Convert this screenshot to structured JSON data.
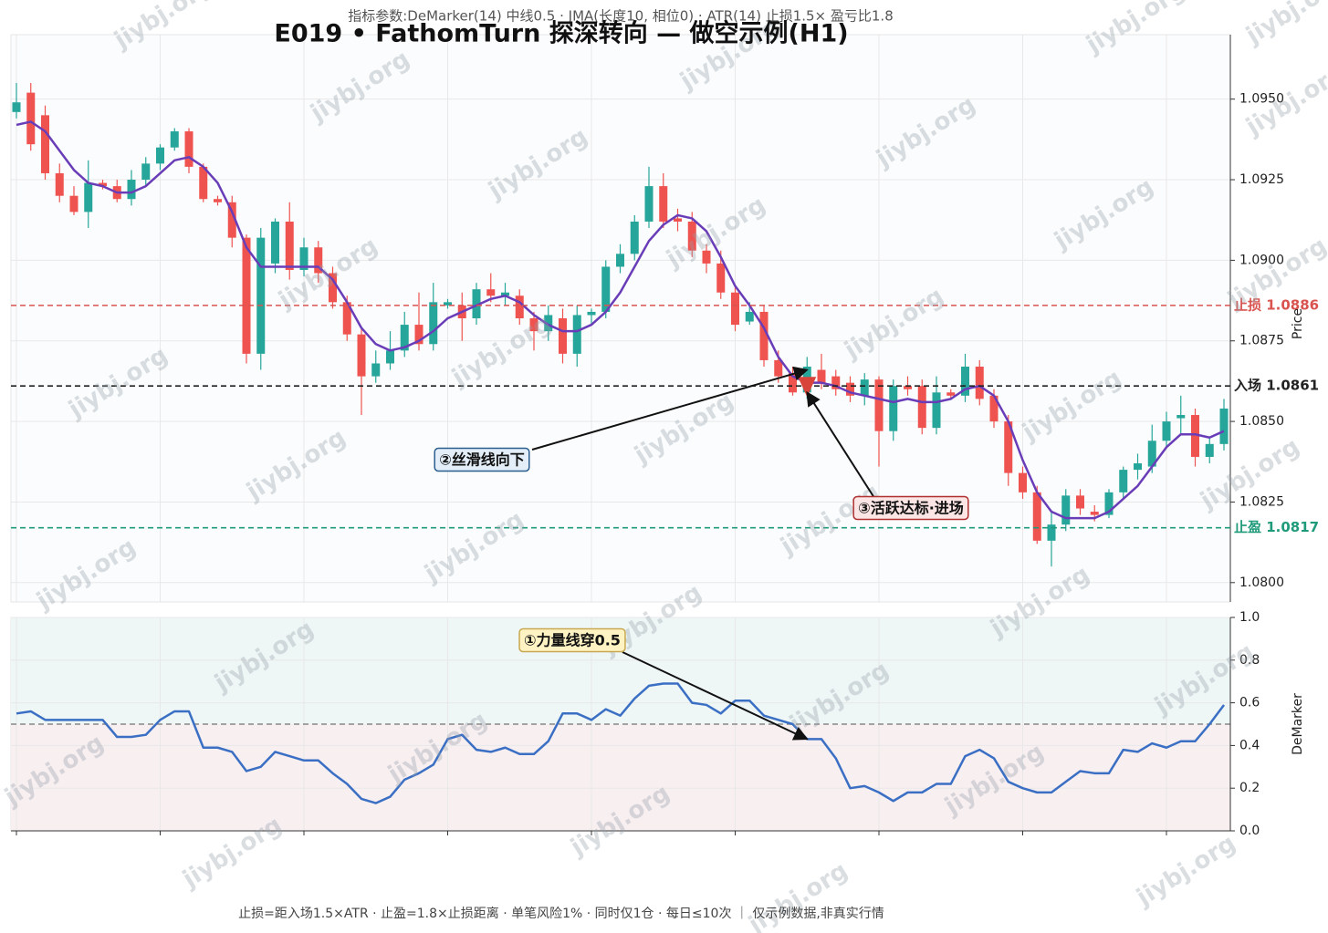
{
  "title": "E019 • FathomTurn 探深转向 — 做空示例(H1)",
  "subtitle": "指标参数:DeMarker(14) 中线0.5 · JMA(长度10, 相位0) · ATR(14) 止损1.5× 盈亏比1.8",
  "footnote": "止损=距入场1.5×ATR · 止盈=1.8×止损距离 · 单笔风险1% · 同时仅1仓 · 每日≤10次 ｜ 仅示例数据,非真实行情",
  "watermark": "jiybj.org",
  "chart_data": [
    {
      "type": "candlestick",
      "ylabel": "Price",
      "grid": true,
      "ylim": [
        1.0794,
        1.097
      ],
      "yticks": [
        {
          "value": 1.08,
          "label": "1.0800"
        },
        1.0825,
        {
          "value": 1.085,
          "label": "1.0850"
        },
        1.0875,
        {
          "value": 1.09,
          "label": "1.0900"
        },
        1.0925,
        {
          "value": 1.095,
          "label": "1.0950"
        }
      ],
      "xticks": [
        0,
        10,
        20,
        30,
        40,
        50,
        60,
        70,
        80
      ],
      "series": [
        {
          "up_color": "#26a69a",
          "down_color": "#ef5350",
          "open": [
            1.0946,
            1.0952,
            1.0945,
            1.0927,
            1.092,
            1.0915,
            1.0924,
            1.0923,
            1.0919,
            1.0925,
            1.093,
            1.0935,
            1.094,
            1.0929,
            1.0919,
            1.0918,
            1.0907,
            1.0871,
            1.0899,
            1.0912,
            1.0897,
            1.0904,
            1.0896,
            1.0887,
            1.0877,
            1.0864,
            1.0868,
            1.0872,
            1.088,
            1.0874,
            1.0886,
            1.0886,
            1.0882,
            1.0891,
            1.0889,
            1.0889,
            1.0882,
            1.0878,
            1.0882,
            1.0871,
            1.0883,
            1.0884,
            1.0898,
            1.0902,
            1.0912,
            1.0923,
            1.0913,
            1.0912,
            1.0903,
            1.0899,
            1.089,
            1.0881,
            1.0884,
            1.0869,
            1.0865,
            1.0859,
            1.0866,
            1.0864,
            1.0862,
            1.0858,
            1.0863,
            1.0847,
            1.0861,
            1.0861,
            1.0848,
            1.0859,
            1.0858,
            1.0867,
            1.0858,
            1.085,
            1.0834,
            1.0828,
            1.0813,
            1.0818,
            1.0827,
            1.0822,
            1.0821,
            1.0828,
            1.0835,
            1.0836,
            1.0844,
            1.0851,
            1.0852,
            1.0839,
            1.0843
          ],
          "high": [
            1.0955,
            1.0955,
            1.0948,
            1.093,
            1.0923,
            1.0931,
            1.0925,
            1.0925,
            1.0928,
            1.0932,
            1.0936,
            1.0941,
            1.0941,
            1.093,
            1.092,
            1.092,
            1.0908,
            1.091,
            1.0913,
            1.0918,
            1.0907,
            1.0906,
            1.0898,
            1.0889,
            1.0879,
            1.0872,
            1.0878,
            1.0884,
            1.089,
            1.0893,
            1.0888,
            1.089,
            1.0893,
            1.0896,
            1.0893,
            1.0891,
            1.0884,
            1.0886,
            1.0885,
            1.0886,
            1.0885,
            1.09,
            1.0905,
            1.0914,
            1.0929,
            1.0927,
            1.0916,
            1.0915,
            1.0905,
            1.0903,
            1.0892,
            1.0887,
            1.0886,
            1.0872,
            1.0867,
            1.087,
            1.0871,
            1.0866,
            1.0864,
            1.0865,
            1.0864,
            1.0863,
            1.0864,
            1.0863,
            1.0864,
            1.086,
            1.0871,
            1.0869,
            1.086,
            1.0852,
            1.0836,
            1.083,
            1.0822,
            1.0829,
            1.0829,
            1.0824,
            1.0829,
            1.0836,
            1.084,
            1.0849,
            1.0853,
            1.0858,
            1.0854,
            1.0845,
            1.0857
          ],
          "low": [
            1.0944,
            1.0934,
            1.0925,
            1.0918,
            1.0914,
            1.091,
            1.0922,
            1.0918,
            1.0917,
            1.0923,
            1.0928,
            1.0934,
            1.0927,
            1.0918,
            1.0917,
            1.0904,
            1.0868,
            1.0866,
            1.0896,
            1.0894,
            1.0895,
            1.0893,
            1.0885,
            1.0875,
            1.0852,
            1.0862,
            1.0866,
            1.087,
            1.0872,
            1.0872,
            1.0885,
            1.0875,
            1.088,
            1.0887,
            1.0886,
            1.088,
            1.0872,
            1.0875,
            1.0868,
            1.0867,
            1.088,
            1.0882,
            1.0896,
            1.09,
            1.091,
            1.091,
            1.0909,
            1.0901,
            1.0896,
            1.0888,
            1.0878,
            1.088,
            1.0867,
            1.0862,
            1.0858,
            1.0857,
            1.086,
            1.0858,
            1.0856,
            1.0855,
            1.0836,
            1.0844,
            1.0858,
            1.0846,
            1.0846,
            1.0857,
            1.0856,
            1.0855,
            1.0848,
            1.083,
            1.0826,
            1.0812,
            1.0805,
            1.0816,
            1.0821,
            1.0819,
            1.082,
            1.0826,
            1.0832,
            1.0834,
            1.0842,
            1.0846,
            1.0836,
            1.0837,
            1.0841
          ],
          "close": [
            1.0949,
            1.0936,
            1.0927,
            1.092,
            1.0915,
            1.0924,
            1.0923,
            1.0919,
            1.0925,
            1.093,
            1.0935,
            1.094,
            1.0929,
            1.0919,
            1.0918,
            1.0907,
            1.0871,
            1.0907,
            1.0912,
            1.0897,
            1.0904,
            1.0896,
            1.0887,
            1.0877,
            1.0864,
            1.0868,
            1.0872,
            1.088,
            1.0874,
            1.0887,
            1.0887,
            1.0882,
            1.0891,
            1.0889,
            1.089,
            1.0882,
            1.0878,
            1.0883,
            1.0871,
            1.0883,
            1.0884,
            1.0898,
            1.0902,
            1.0912,
            1.0923,
            1.0912,
            1.0912,
            1.0903,
            1.0899,
            1.089,
            1.088,
            1.0884,
            1.0869,
            1.0864,
            1.0859,
            1.0867,
            1.0862,
            1.086,
            1.0858,
            1.0863,
            1.0847,
            1.0861,
            1.086,
            1.0848,
            1.0859,
            1.0858,
            1.0867,
            1.0857,
            1.085,
            1.0834,
            1.0828,
            1.0813,
            1.0818,
            1.0827,
            1.0823,
            1.0821,
            1.0828,
            1.0835,
            1.0837,
            1.0844,
            1.085,
            1.0852,
            1.0839,
            1.0843,
            1.0854
          ]
        },
        {
          "color": "#6a3db8",
          "values": [
            1.0942,
            1.0943,
            1.094,
            1.0934,
            1.0928,
            1.0924,
            1.0923,
            1.0921,
            1.0921,
            1.0923,
            1.0927,
            1.0931,
            1.0932,
            1.0929,
            1.0924,
            1.0915,
            1.0904,
            1.0898,
            1.0898,
            1.0898,
            1.0898,
            1.0898,
            1.0894,
            1.0887,
            1.0879,
            1.0874,
            1.0872,
            1.0873,
            1.0875,
            1.0878,
            1.0882,
            1.0884,
            1.0886,
            1.0888,
            1.0889,
            1.0887,
            1.0883,
            1.088,
            1.0878,
            1.0878,
            1.088,
            1.0884,
            1.089,
            1.0898,
            1.0906,
            1.0911,
            1.0914,
            1.0913,
            1.0909,
            1.0901,
            1.0892,
            1.0886,
            1.0879,
            1.087,
            1.0864,
            1.0862,
            1.0862,
            1.0861,
            1.0859,
            1.0858,
            1.0857,
            1.0856,
            1.0857,
            1.0856,
            1.0856,
            1.0857,
            1.086,
            1.0861,
            1.0858,
            1.085,
            1.0838,
            1.0828,
            1.0822,
            1.082,
            1.082,
            1.082,
            1.0822,
            1.0826,
            1.083,
            1.0836,
            1.0842,
            1.0846,
            1.0846,
            1.0845,
            1.0847
          ]
        }
      ],
      "hlines": [
        {
          "value": 1.0886,
          "label": "止损 1.0886",
          "color": "#d9534f"
        },
        {
          "value": 1.0861,
          "label": "入场 1.0861",
          "color": "#222222"
        },
        {
          "value": 1.0817,
          "label": "止盈 1.0817",
          "color": "#1f9a7a"
        }
      ],
      "marker": {
        "x": 55,
        "y": 1.0861,
        "color": "#d9443a"
      },
      "annotations": [
        {
          "text": "②丝滑线向下",
          "x": 55,
          "y": 1.0866
        },
        {
          "text": "③活跃达标·进场",
          "x": 55,
          "y": 1.0859
        }
      ]
    },
    {
      "type": "line",
      "ylabel": "DeMarker",
      "grid": true,
      "ylim": [
        0,
        1
      ],
      "yticks": [
        {
          "value": 0,
          "label": "0.0"
        },
        0.2,
        0.4,
        0.6,
        0.8,
        {
          "value": 1,
          "label": "1.0"
        }
      ],
      "xticks": [
        0,
        10,
        20,
        30,
        40,
        50,
        60,
        70,
        80
      ],
      "midline": 0.5,
      "series": [
        {
          "color": "#3a6fc4",
          "values": [
            0.55,
            0.56,
            0.52,
            0.52,
            0.52,
            0.52,
            0.52,
            0.44,
            0.44,
            0.45,
            0.52,
            0.56,
            0.56,
            0.39,
            0.39,
            0.37,
            0.28,
            0.3,
            0.37,
            0.35,
            0.33,
            0.33,
            0.27,
            0.22,
            0.15,
            0.13,
            0.16,
            0.24,
            0.27,
            0.31,
            0.43,
            0.45,
            0.38,
            0.37,
            0.39,
            0.36,
            0.36,
            0.42,
            0.55,
            0.55,
            0.52,
            0.57,
            0.54,
            0.62,
            0.68,
            0.69,
            0.69,
            0.6,
            0.59,
            0.55,
            0.61,
            0.61,
            0.54,
            0.52,
            0.5,
            0.43,
            0.43,
            0.34,
            0.2,
            0.21,
            0.18,
            0.14,
            0.18,
            0.18,
            0.22,
            0.22,
            0.35,
            0.38,
            0.34,
            0.23,
            0.2,
            0.18,
            0.18,
            0.23,
            0.28,
            0.27,
            0.27,
            0.38,
            0.37,
            0.41,
            0.39,
            0.42,
            0.42,
            0.5,
            0.59
          ]
        }
      ],
      "annotations": [
        {
          "text": "①力量线穿0.5",
          "x": 55,
          "y": 0.43
        }
      ]
    }
  ]
}
